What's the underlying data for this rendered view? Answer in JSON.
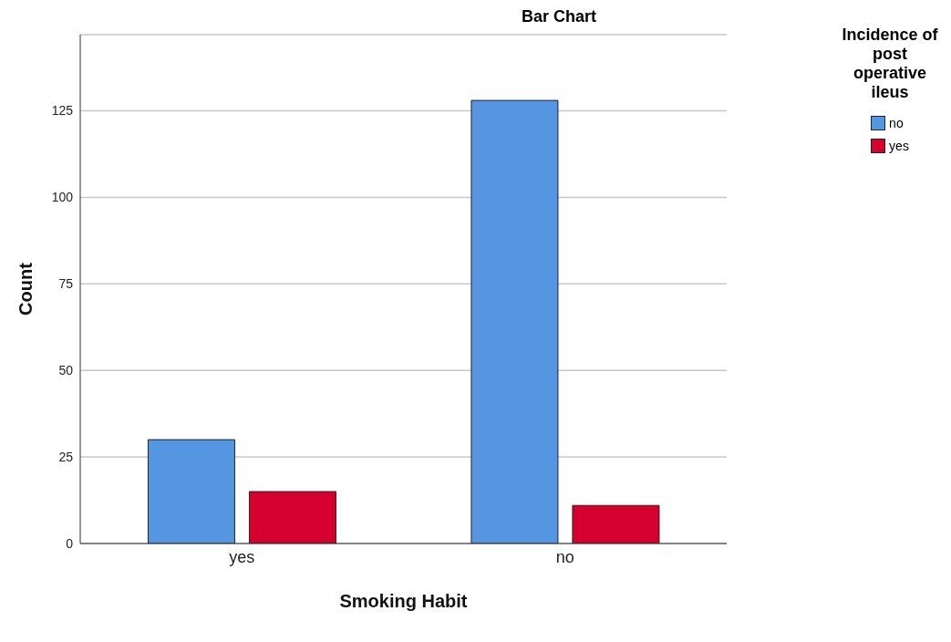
{
  "chart_data": {
    "type": "bar",
    "title": "Bar Chart",
    "xlabel": "Smoking Habit",
    "ylabel": "Count",
    "legend_title": "Incidence of post operative ileus",
    "categories": [
      "yes",
      "no"
    ],
    "series": [
      {
        "name": "no",
        "color": "#5596e3",
        "values": [
          30,
          128
        ]
      },
      {
        "name": "yes",
        "color": "#d5002e",
        "values": [
          15,
          11
        ]
      }
    ],
    "ylim": [
      0,
      147
    ],
    "yticks": [
      0,
      25,
      50,
      75,
      100,
      125
    ],
    "grid": "y",
    "legend": "top right"
  }
}
